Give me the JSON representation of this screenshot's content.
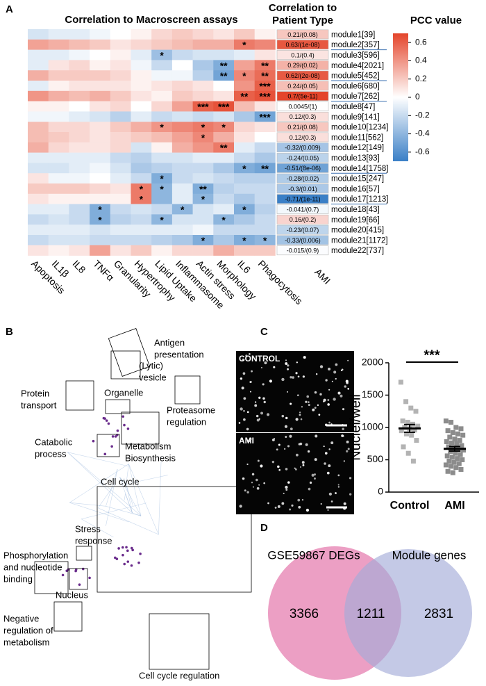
{
  "chart_data": [
    {
      "type": "heatmap",
      "panel": "A",
      "title": "Correlation to Macroscreen assays",
      "x": [
        "Apoptosis",
        "IL1β",
        "IL8",
        "TNFα",
        "Granularity",
        "Hypertrophy",
        "Lipid Uptake",
        "Inflammasome",
        "Actin stress",
        "Morphology",
        "IL6",
        "Phagocytosis"
      ],
      "rows": [
        "module1[39]",
        "module2[357]",
        "module3[596]",
        "module4[2021]",
        "module5[452]",
        "module6[680]",
        "module7[262]",
        "module8[47]",
        "module9[141]",
        "module10[1234]",
        "module11[562]",
        "module12[149]",
        "module13[93]",
        "module14[1758]",
        "module15[247]",
        "module16[57]",
        "module17[1213]",
        "module18[43]",
        "module19[66]",
        "module20[415]",
        "module21[1172]",
        "module22[737]"
      ],
      "underline": [
        false,
        true,
        false,
        false,
        true,
        false,
        true,
        false,
        false,
        false,
        false,
        false,
        false,
        true,
        false,
        false,
        true,
        false,
        false,
        false,
        false,
        false
      ],
      "values": [
        [
          -0.15,
          -0.1,
          -0.1,
          -0.05,
          0,
          0.05,
          0.15,
          0.2,
          0.15,
          0.1,
          0.2,
          0.05
        ],
        [
          0.35,
          0.3,
          0.25,
          0.2,
          0.1,
          0.15,
          0.2,
          0.25,
          0.3,
          0.3,
          0.5,
          0.45
        ],
        [
          -0.1,
          -0.1,
          -0.05,
          0,
          0.05,
          -0.1,
          -0.35,
          -0.2,
          -0.15,
          -0.15,
          -0.1,
          0.1
        ],
        [
          -0.1,
          0.1,
          0.15,
          0.05,
          0.1,
          -0.05,
          -0.2,
          0,
          -0.3,
          -0.45,
          0.35,
          0.5
        ],
        [
          0.3,
          0.2,
          0.2,
          0.2,
          0.15,
          0.05,
          -0.05,
          -0.05,
          -0.25,
          -0.5,
          0.45,
          0.55
        ],
        [
          -0.1,
          0.05,
          0.1,
          0.1,
          0.1,
          0.05,
          0.1,
          0.15,
          0.1,
          0,
          0.4,
          0.6
        ],
        [
          0.4,
          0.3,
          0.25,
          0.3,
          0.2,
          0.1,
          0.05,
          0.2,
          0.15,
          0.1,
          0.6,
          0.65
        ],
        [
          0.05,
          0.05,
          0,
          0.1,
          0.15,
          0,
          0.15,
          0.35,
          0.6,
          0.65,
          0.25,
          0.1
        ],
        [
          -0.05,
          -0.05,
          -0.1,
          -0.15,
          -0.25,
          -0.1,
          -0.2,
          -0.15,
          -0.2,
          -0.15,
          -0.3,
          -0.5
        ],
        [
          0.25,
          0.15,
          0.15,
          0.1,
          0.2,
          0.3,
          0.4,
          0.45,
          0.5,
          0.45,
          0.15,
          0.1
        ],
        [
          0.25,
          0.2,
          0.15,
          0.1,
          0.15,
          0.2,
          0.25,
          0.35,
          0.45,
          0.3,
          0.1,
          0
        ],
        [
          0.3,
          0.15,
          0.1,
          0.1,
          0.15,
          -0.15,
          0.05,
          0.3,
          0.4,
          0.5,
          -0.1,
          -0.2
        ],
        [
          -0.1,
          -0.1,
          -0.1,
          -0.1,
          -0.2,
          -0.25,
          -0.15,
          -0.15,
          -0.1,
          -0.1,
          -0.2,
          -0.3
        ],
        [
          -0.15,
          -0.15,
          -0.1,
          -0.05,
          -0.15,
          -0.3,
          -0.25,
          -0.2,
          -0.2,
          -0.3,
          -0.45,
          -0.5
        ],
        [
          0.1,
          -0.05,
          -0.05,
          0,
          -0.1,
          -0.2,
          -0.45,
          -0.2,
          -0.15,
          -0.2,
          -0.25,
          -0.25
        ],
        [
          0.2,
          0.2,
          0.2,
          0.15,
          0.1,
          0.5,
          -0.4,
          -0.1,
          -0.45,
          -0.25,
          -0.2,
          -0.2
        ],
        [
          0.1,
          0.05,
          0.05,
          0.05,
          0.05,
          0.5,
          -0.4,
          -0.1,
          -0.4,
          -0.2,
          -0.3,
          -0.2
        ],
        [
          -0.1,
          -0.1,
          -0.2,
          -0.45,
          -0.2,
          -0.15,
          -0.2,
          -0.4,
          -0.15,
          -0.1,
          -0.45,
          -0.25
        ],
        [
          -0.2,
          -0.15,
          -0.2,
          -0.45,
          -0.25,
          -0.2,
          -0.4,
          -0.15,
          -0.15,
          -0.4,
          -0.3,
          -0.2
        ],
        [
          -0.1,
          -0.1,
          -0.1,
          -0.15,
          -0.1,
          -0.1,
          -0.1,
          -0.1,
          -0.05,
          -0.2,
          -0.2,
          -0.2
        ],
        [
          -0.2,
          -0.15,
          -0.15,
          -0.2,
          -0.2,
          -0.2,
          -0.25,
          -0.3,
          -0.45,
          -0.3,
          -0.45,
          -0.4
        ],
        [
          0.1,
          0.05,
          0.1,
          0.35,
          0.1,
          0.2,
          0.05,
          0.15,
          0.15,
          0.3,
          0.2,
          0.2
        ]
      ],
      "annotations": [
        [
          null,
          null,
          null,
          null,
          null,
          null,
          null,
          null,
          null,
          null,
          null,
          null
        ],
        [
          null,
          null,
          null,
          null,
          null,
          null,
          null,
          null,
          null,
          null,
          "*",
          null
        ],
        [
          null,
          null,
          null,
          null,
          null,
          null,
          "*",
          null,
          null,
          null,
          null,
          null
        ],
        [
          null,
          null,
          null,
          null,
          null,
          null,
          null,
          null,
          null,
          "**",
          null,
          "**"
        ],
        [
          null,
          null,
          null,
          null,
          null,
          null,
          null,
          null,
          null,
          "**",
          "*",
          "**"
        ],
        [
          null,
          null,
          null,
          null,
          null,
          null,
          null,
          null,
          null,
          null,
          null,
          "***"
        ],
        [
          null,
          null,
          null,
          null,
          null,
          null,
          null,
          null,
          null,
          null,
          "**",
          "***"
        ],
        [
          null,
          null,
          null,
          null,
          null,
          null,
          null,
          null,
          "***",
          "***",
          null,
          null
        ],
        [
          null,
          null,
          null,
          null,
          null,
          null,
          null,
          null,
          null,
          null,
          null,
          "***"
        ],
        [
          null,
          null,
          null,
          null,
          null,
          null,
          "*",
          null,
          "*",
          "*",
          null,
          null
        ],
        [
          null,
          null,
          null,
          null,
          null,
          null,
          null,
          null,
          "*",
          null,
          null,
          null
        ],
        [
          null,
          null,
          null,
          null,
          null,
          null,
          null,
          null,
          null,
          "**",
          null,
          null
        ],
        [
          null,
          null,
          null,
          null,
          null,
          null,
          null,
          null,
          null,
          null,
          null,
          null
        ],
        [
          null,
          null,
          null,
          null,
          null,
          null,
          null,
          null,
          null,
          null,
          "*",
          "**"
        ],
        [
          null,
          null,
          null,
          null,
          null,
          null,
          "*",
          null,
          null,
          null,
          null,
          null
        ],
        [
          null,
          null,
          null,
          null,
          null,
          "*",
          "*",
          null,
          "**",
          null,
          null,
          null
        ],
        [
          null,
          null,
          null,
          null,
          null,
          "*",
          null,
          null,
          "*",
          null,
          null,
          null
        ],
        [
          null,
          null,
          null,
          "*",
          null,
          null,
          null,
          "*",
          null,
          null,
          "*",
          null
        ],
        [
          null,
          null,
          null,
          "*",
          null,
          null,
          "*",
          null,
          null,
          "*",
          null,
          null
        ],
        [
          null,
          null,
          null,
          null,
          null,
          null,
          null,
          null,
          null,
          null,
          null,
          null
        ],
        [
          null,
          null,
          null,
          null,
          null,
          null,
          null,
          null,
          "*",
          null,
          "*",
          "*"
        ],
        [
          null,
          null,
          null,
          null,
          null,
          null,
          null,
          null,
          null,
          null,
          null,
          null
        ]
      ],
      "side_title": [
        "Correlation to",
        "Patient Type"
      ],
      "side_column": "AMI",
      "side_values": [
        0.21,
        0.63,
        0.1,
        0.29,
        0.62,
        0.24,
        0.7,
        0.0045,
        0.12,
        0.21,
        0.12,
        -0.32,
        -0.24,
        -0.51,
        -0.28,
        -0.3,
        -0.71,
        -0.041,
        0.16,
        -0.23,
        -0.33,
        -0.015
      ],
      "side_value_labels": [
        "0.21/(0.08)",
        "0.63/(1e-08)",
        "0.1/(0.4)",
        "0.29/(0.02)",
        "0.62/(2e-08)",
        "0.24/(0.05)",
        "0.7/(5e-11)",
        "0.0045/(1)",
        "0.12/(0.3)",
        "0.21/(0.08)",
        "0.12/(0.3)",
        "-0.32/(0.009)",
        "-0.24/(0.05)",
        "-0.51/(8e-06)",
        "-0.28/(0.02)",
        "-0.3/(0.01)",
        "-0.71/(1e-11)",
        "-0.041/(0.7)",
        "0.16/(0.2)",
        "-0.23/(0.07)",
        "-0.33/(0.006)",
        "-0.015/(0.9)"
      ],
      "colorbar_title": "PCC value",
      "clim": [
        -0.7,
        0.7
      ],
      "cticks": [
        0.6,
        0.4,
        0.2,
        0,
        -0.2,
        -0.4,
        -0.6
      ],
      "colors": {
        "low": "#3a7fc6",
        "mid": "#ffffff",
        "high": "#e4452b"
      }
    },
    {
      "type": "strip",
      "panel": "C",
      "categories": [
        "Control",
        "AMI"
      ],
      "ylabel": "Nuclei/well",
      "annotation": "***",
      "ylim": [
        0,
        2000
      ],
      "yticks": [
        0,
        500,
        1000,
        1500,
        2000
      ],
      "series": [
        {
          "name": "Control",
          "color": "#b3b3b3",
          "mean": 985,
          "sem": 60,
          "values": [
            1700,
            1400,
            1300,
            1250,
            1100,
            1080,
            1050,
            1020,
            1000,
            980,
            960,
            950,
            900,
            880,
            800,
            700,
            600,
            480
          ]
        },
        {
          "name": "AMI",
          "color": "#8c8c8c",
          "mean": 670,
          "sem": 35,
          "values": [
            1100,
            1080,
            1000,
            980,
            950,
            920,
            900,
            880,
            850,
            820,
            800,
            780,
            760,
            750,
            720,
            700,
            680,
            660,
            650,
            630,
            600,
            580,
            560,
            540,
            520,
            500,
            480,
            460,
            440,
            420,
            400,
            380,
            350,
            320,
            300
          ]
        }
      ]
    },
    {
      "type": "venn",
      "panel": "D",
      "sets": [
        "GSE59867 DEGs",
        "Module genes"
      ],
      "values": [
        3366,
        1211,
        2831
      ],
      "colors": [
        "#e57fb0",
        "#a4acd8"
      ]
    }
  ],
  "network": {
    "panel": "B",
    "labels": [
      [
        "Antigen",
        "presentation"
      ],
      [
        "(Lytic)",
        "vesicle"
      ],
      [
        "Protein",
        "transport"
      ],
      [
        "Organelle"
      ],
      [
        "Proteasome",
        "regulation"
      ],
      [
        "Catabolic",
        "process"
      ],
      [
        "Metabolism",
        "Biosynthesis"
      ],
      [
        "Cell cycle"
      ],
      [
        "Stress",
        "response"
      ],
      [
        "Phosphorylation",
        "and nucleotide",
        "binding"
      ],
      [
        "Nucleus"
      ],
      [
        "Negative",
        "regulation of",
        "metabolism"
      ],
      [
        "Cell cycle regulation"
      ]
    ]
  },
  "micrographs": {
    "labels": [
      "CONTROL",
      "AMI"
    ]
  }
}
